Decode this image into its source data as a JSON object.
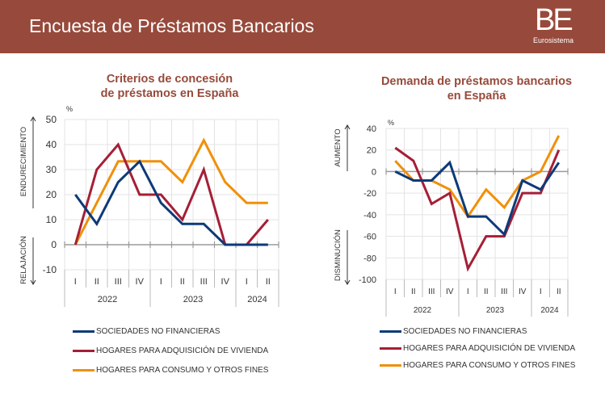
{
  "header": {
    "title": "Encuesta de Préstamos Bancarios",
    "logo_text": "BE",
    "logo_sub": "Eurosistema"
  },
  "colors": {
    "header_bg": "#974a3b",
    "title": "#974a3b",
    "series_blue": "#0d3a78",
    "series_red": "#a51f36",
    "series_orange": "#f0900a"
  },
  "chart_data": [
    {
      "type": "line",
      "title": "Criterios de concesión de préstamos en España",
      "title_lines": [
        "Criterios de concesión",
        "de préstamos en España"
      ],
      "unit_label": "%",
      "ylim": [
        -10,
        50
      ],
      "yticks": [
        50,
        40,
        30,
        20,
        10,
        0,
        -10
      ],
      "up_label": "ENDURECIMIENTO",
      "down_label": "RELAJACIÓN",
      "categories": [
        "I",
        "II",
        "III",
        "IV",
        "I",
        "II",
        "III",
        "IV",
        "I",
        "II"
      ],
      "years": [
        {
          "label": "2022",
          "span": 4
        },
        {
          "label": "2023",
          "span": 4
        },
        {
          "label": "2024",
          "span": 2
        }
      ],
      "grid": true,
      "legend_position": "bottom",
      "series": [
        {
          "name": "SOCIEDADES NO FINANCIERAS",
          "color_key": "series_blue",
          "values": [
            20,
            8.3,
            25,
            33.3,
            16.7,
            8.3,
            8.3,
            0,
            0,
            0
          ]
        },
        {
          "name": "HOGARES PARA ADQUISICIÓN DE VIVIENDA",
          "color_key": "series_red",
          "values": [
            0,
            30,
            40,
            20,
            20,
            10,
            30,
            0,
            0,
            10
          ]
        },
        {
          "name": "HOGARES PARA CONSUMO Y OTROS FINES",
          "color_key": "series_orange",
          "values": [
            0,
            16.7,
            33.3,
            33.3,
            33.3,
            25,
            41.7,
            25,
            16.7,
            16.7
          ]
        }
      ]
    },
    {
      "type": "line",
      "title": "Demanda de préstamos bancarios en España",
      "title_lines": [
        "Demanda de préstamos bancarios",
        "en España"
      ],
      "unit_label": "%",
      "ylim": [
        -100,
        40
      ],
      "yticks": [
        40,
        20,
        0,
        -20,
        -40,
        -60,
        -80,
        -100
      ],
      "up_label": "AUMENTO",
      "down_label": "DISMINUCIÓN",
      "categories": [
        "I",
        "II",
        "III",
        "IV",
        "I",
        "II",
        "III",
        "IV",
        "I",
        "II"
      ],
      "years": [
        {
          "label": "2022",
          "span": 4
        },
        {
          "label": "2023",
          "span": 4
        },
        {
          "label": "2024",
          "span": 2
        }
      ],
      "grid": true,
      "legend_position": "bottom",
      "series": [
        {
          "name": "SOCIEDADES NO FINANCIERAS",
          "color_key": "series_blue",
          "values": [
            0,
            -8.3,
            -8.3,
            8.3,
            -41.7,
            -41.7,
            -58.3,
            -8.3,
            -16.7,
            8.3
          ]
        },
        {
          "name": "HOGARES PARA ADQUISICIÓN DE VIVIENDA",
          "color_key": "series_red",
          "values": [
            22,
            10,
            -30,
            -20,
            -90,
            -60,
            -60,
            -20,
            -20,
            20
          ]
        },
        {
          "name": "HOGARES PARA CONSUMO Y OTROS FINES",
          "color_key": "series_orange",
          "values": [
            10,
            -8.3,
            -8.3,
            -16.7,
            -41.7,
            -16.7,
            -33.3,
            -8.3,
            0,
            33.3
          ]
        }
      ]
    }
  ]
}
